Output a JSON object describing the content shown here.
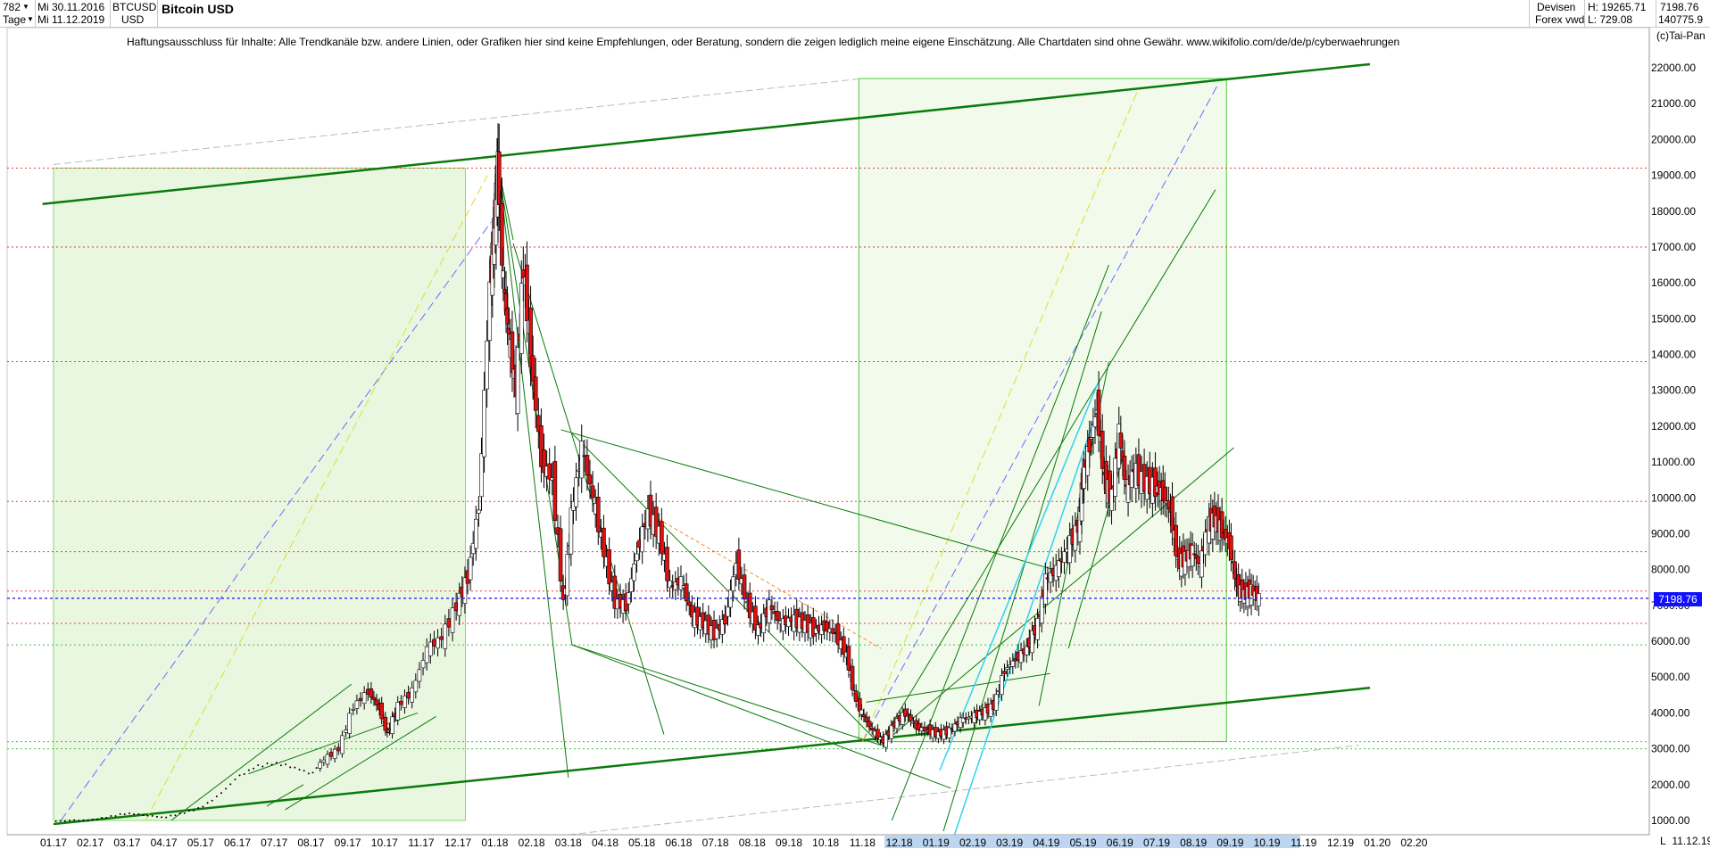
{
  "toolbar": {
    "count": "782",
    "interval": "Tage",
    "date_from": "Mi 30.11.2016",
    "date_to": "Mi 11.12.2019",
    "symbol": "BTCUSD",
    "currency": "USD",
    "title": "Bitcoin USD",
    "source1": "Devisen",
    "source2": "Forex vwd",
    "high": "H: 19265.71",
    "low": "L: 729.08",
    "last": "7198.76",
    "volume": "140775.9"
  },
  "annotations": {
    "disclaimer": "Haftungsausschluss für Inhalte: Alle Trendkanäle bzw. andere Linien, oder Grafiken hier sind keine Empfehlungen, oder Beratung, sondern die zeigen lediglich meine eigene Einschätzung. Alle Chartdaten sind ohne Gewähr.  www.wikifolio.com/de/de/p/cyberwaehrungen",
    "copyright": "(c)Tai-Pan",
    "last_price_tag": "7198.76",
    "bottom_date": "11.12.19",
    "axis_mode": "L"
  },
  "colors": {
    "candle_up": "#ffffff",
    "candle_down": "#e01010",
    "trend_green": "#0a7a0a",
    "zone_fill": "#eaf7e0",
    "last_price_line": "#1010ff"
  },
  "chart_data": {
    "type": "candlestick",
    "title": "Bitcoin USD",
    "ylim": [
      650,
      23100
    ],
    "y_ticks": [
      1000,
      2000,
      3000,
      4000,
      5000,
      6000,
      7000,
      8000,
      9000,
      10000,
      11000,
      12000,
      13000,
      14000,
      15000,
      16000,
      17000,
      18000,
      19000,
      20000,
      21000,
      22000
    ],
    "y_tick_labels": [
      "1000.00",
      "2000.00",
      "3000.00",
      "4000.00",
      "5000.00",
      "6000.00",
      "7000.00",
      "8000.00",
      "9000.00",
      "10000.00",
      "11000.00",
      "12000.00",
      "13000.00",
      "14000.00",
      "15000.00",
      "16000.00",
      "17000.00",
      "18000.00",
      "19000.00",
      "20000.00",
      "21000.00",
      "22000.00"
    ],
    "x_tick_labels": [
      "01.17",
      "02.17",
      "03.17",
      "04.17",
      "05.17",
      "06.17",
      "07.17",
      "08.17",
      "09.17",
      "10.17",
      "11.17",
      "12.17",
      "01.18",
      "02.18",
      "03.18",
      "04.18",
      "05.18",
      "06.18",
      "07.18",
      "08.18",
      "09.18",
      "10.18",
      "11.18",
      "12.18",
      "01.19",
      "02.19",
      "03.19",
      "04.19",
      "05.19",
      "06.19",
      "07.19",
      "08.19",
      "09.19",
      "10.19",
      "11.19",
      "12.19",
      "01.20",
      "02.20"
    ],
    "x_range_months": [
      0,
      38
    ],
    "last_price": 7198.76,
    "price_path": [
      [
        0.0,
        970
      ],
      [
        0.5,
        1000
      ],
      [
        1.0,
        1000
      ],
      [
        1.5,
        1100
      ],
      [
        2.0,
        1200
      ],
      [
        2.5,
        1150
      ],
      [
        3.0,
        1080
      ],
      [
        3.5,
        1200
      ],
      [
        4.0,
        1350
      ],
      [
        4.5,
        1700
      ],
      [
        5.0,
        2200
      ],
      [
        5.5,
        2500
      ],
      [
        6.0,
        2600
      ],
      [
        6.5,
        2500
      ],
      [
        7.0,
        2300
      ],
      [
        7.4,
        2700
      ],
      [
        7.8,
        3000
      ],
      [
        8.2,
        4200
      ],
      [
        8.6,
        4600
      ],
      [
        8.9,
        4100
      ],
      [
        9.1,
        3400
      ],
      [
        9.4,
        4200
      ],
      [
        9.8,
        4600
      ],
      [
        10.2,
        5800
      ],
      [
        10.6,
        6100
      ],
      [
        11.0,
        7000
      ],
      [
        11.3,
        7800
      ],
      [
        11.6,
        9800
      ],
      [
        11.9,
        16000
      ],
      [
        12.0,
        17500
      ],
      [
        12.1,
        19200
      ],
      [
        12.25,
        16000
      ],
      [
        12.4,
        14500
      ],
      [
        12.6,
        13000
      ],
      [
        12.8,
        16500
      ],
      [
        13.0,
        14000
      ],
      [
        13.3,
        11000
      ],
      [
        13.6,
        10500
      ],
      [
        13.9,
        7000
      ],
      [
        14.1,
        9500
      ],
      [
        14.4,
        11400
      ],
      [
        14.7,
        10000
      ],
      [
        15.0,
        8500
      ],
      [
        15.3,
        7100
      ],
      [
        15.6,
        7000
      ],
      [
        15.9,
        8500
      ],
      [
        16.2,
        9600
      ],
      [
        16.5,
        9000
      ],
      [
        16.8,
        7500
      ],
      [
        17.1,
        7700
      ],
      [
        17.4,
        6700
      ],
      [
        17.7,
        6500
      ],
      [
        18.0,
        6200
      ],
      [
        18.3,
        6600
      ],
      [
        18.6,
        8200
      ],
      [
        18.9,
        7000
      ],
      [
        19.2,
        6300
      ],
      [
        19.5,
        7000
      ],
      [
        19.8,
        6500
      ],
      [
        20.1,
        6600
      ],
      [
        20.4,
        6500
      ],
      [
        20.7,
        6300
      ],
      [
        21.0,
        6400
      ],
      [
        21.3,
        6200
      ],
      [
        21.6,
        5600
      ],
      [
        21.8,
        4500
      ],
      [
        22.0,
        4000
      ],
      [
        22.3,
        3500
      ],
      [
        22.6,
        3200
      ],
      [
        22.9,
        3700
      ],
      [
        23.2,
        4000
      ],
      [
        23.5,
        3600
      ],
      [
        23.8,
        3500
      ],
      [
        24.1,
        3400
      ],
      [
        24.4,
        3500
      ],
      [
        24.7,
        3800
      ],
      [
        25.0,
        3900
      ],
      [
        25.3,
        4000
      ],
      [
        25.6,
        4200
      ],
      [
        25.9,
        5200
      ],
      [
        26.2,
        5500
      ],
      [
        26.5,
        5800
      ],
      [
        26.8,
        6500
      ],
      [
        27.0,
        7700
      ],
      [
        27.3,
        8000
      ],
      [
        27.6,
        8600
      ],
      [
        27.9,
        9200
      ],
      [
        28.0,
        10500
      ],
      [
        28.2,
        11500
      ],
      [
        28.4,
        12500
      ],
      [
        28.6,
        10500
      ],
      [
        28.8,
        10000
      ],
      [
        29.0,
        11800
      ],
      [
        29.2,
        10200
      ],
      [
        29.4,
        10800
      ],
      [
        29.7,
        10400
      ],
      [
        30.0,
        10300
      ],
      [
        30.2,
        10100
      ],
      [
        30.4,
        9600
      ],
      [
        30.6,
        8200
      ],
      [
        30.8,
        8300
      ],
      [
        31.0,
        8500
      ],
      [
        31.2,
        8100
      ],
      [
        31.4,
        9200
      ],
      [
        31.6,
        9400
      ],
      [
        31.8,
        9100
      ],
      [
        32.0,
        8700
      ],
      [
        32.2,
        7500
      ],
      [
        32.4,
        7300
      ],
      [
        32.6,
        7400
      ],
      [
        32.8,
        7200
      ]
    ],
    "levels": [
      19200,
      17000,
      13800,
      9900,
      8500,
      7400,
      6500,
      5900,
      3200,
      3000
    ]
  }
}
